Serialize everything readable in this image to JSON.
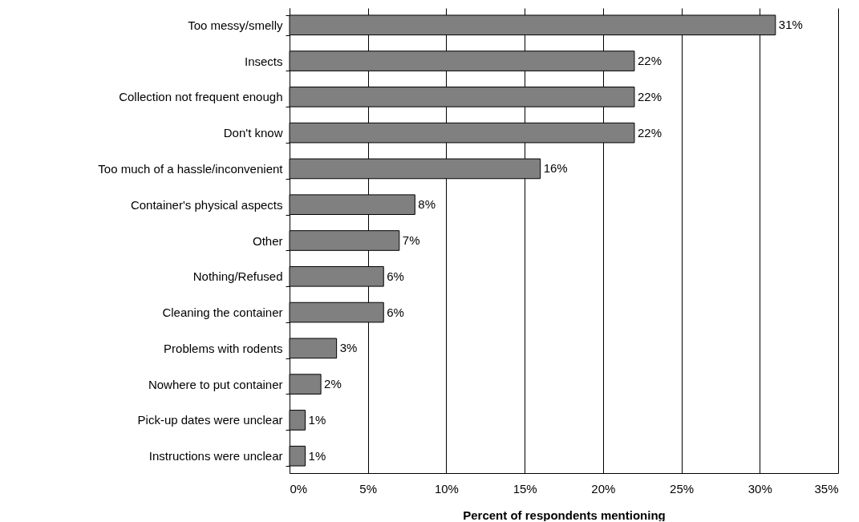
{
  "chart_data": {
    "type": "bar",
    "orientation": "horizontal",
    "xlabel": "Percent of respondents mentioning",
    "categories": [
      "Too messy/smelly",
      "Insects",
      "Collection not frequent enough",
      "Don't know",
      "Too much of a hassle/inconvenient",
      "Container's physical aspects",
      "Other",
      "Nothing/Refused",
      "Cleaning the container",
      "Problems with rodents",
      "Nowhere to put container",
      "Pick-up dates were unclear",
      "Instructions were unclear"
    ],
    "values": [
      31,
      22,
      22,
      22,
      16,
      8,
      7,
      6,
      6,
      3,
      2,
      1,
      1
    ],
    "value_labels": [
      "31%",
      "22%",
      "22%",
      "22%",
      "16%",
      "8%",
      "7%",
      "6%",
      "6%",
      "3%",
      "2%",
      "1%",
      "1%"
    ],
    "color": "#808080",
    "xlim": [
      0,
      35
    ],
    "xticks": [
      {
        "value": 0,
        "label": "0%"
      },
      {
        "value": 5,
        "label": "5%"
      },
      {
        "value": 10,
        "label": "10%"
      },
      {
        "value": 15,
        "label": "15%"
      },
      {
        "value": 20,
        "label": "20%"
      },
      {
        "value": 25,
        "label": "25%"
      },
      {
        "value": 30,
        "label": "30%"
      },
      {
        "value": 35,
        "label": "35%"
      }
    ],
    "grid": "x"
  }
}
